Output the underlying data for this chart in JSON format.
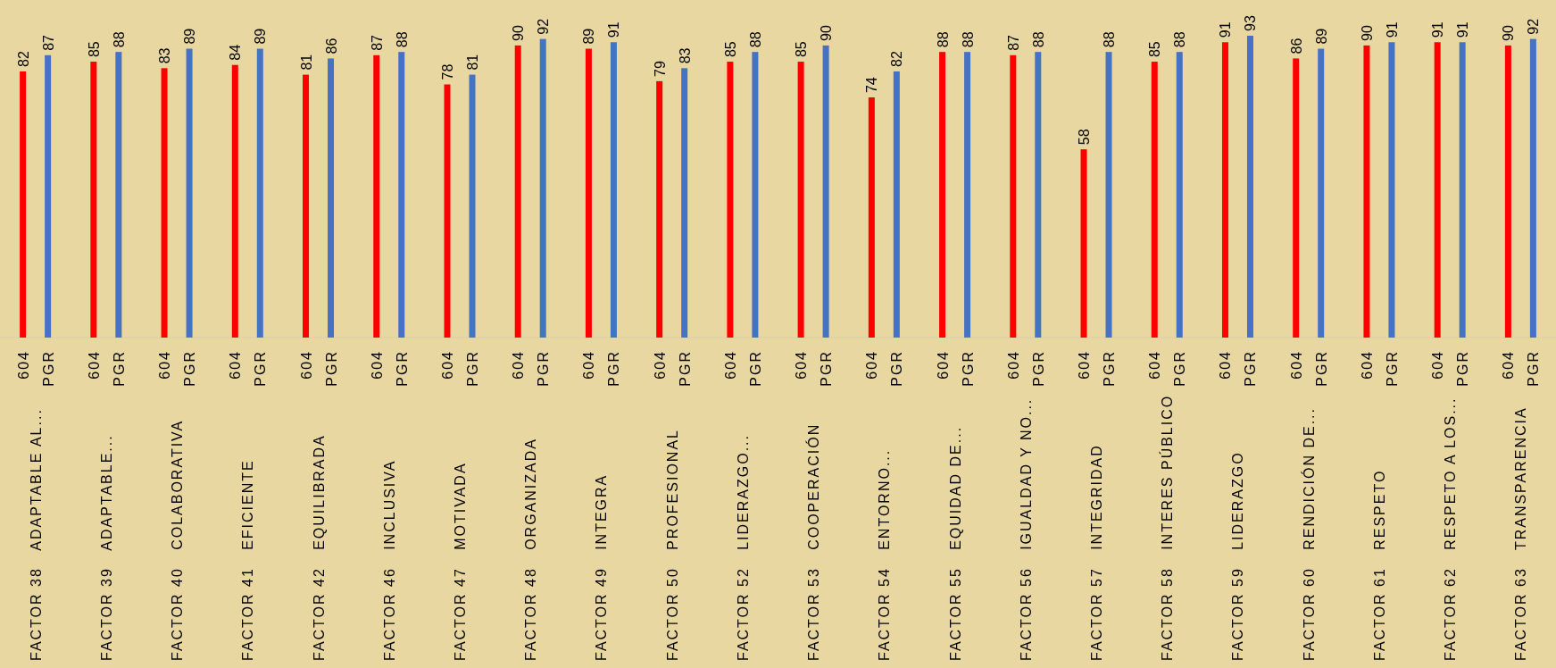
{
  "chart_data": {
    "type": "bar",
    "categories": [
      "FACTOR 38   ADAPTABLE AL...",
      "FACTOR 39   ADAPTABLE...",
      "FACTOR 40   COLABORATIVA",
      "FACTOR 41   EFICIENTE",
      "FACTOR 42   EQUILIBRADA",
      "FACTOR 46   INCLUSIVA",
      "FACTOR 47   MOTIVADA",
      "FACTOR 48   ORGANIZADA",
      "FACTOR 49   INTEGRA",
      "FACTOR 50   PROFESIONAL",
      "FACTOR 52   LIDERAZGO...",
      "FACTOR 53   COOPERACIÓN",
      "FACTOR 54   ENTORNO...",
      "FACTOR 55   EQUIDAD DE...",
      "FACTOR 56   IGUALDAD Y NO...",
      "FACTOR 57   INTEGRIDAD",
      "FACTOR 58   INTERES PÚBLICO",
      "FACTOR 59   LIDERAZGO",
      "FACTOR 60   RENDICIÓN DE...",
      "FACTOR 61   RESPETO",
      "FACTOR 62   RESPETO A LOS...",
      "FACTOR 63   TRANSPARENCIA"
    ],
    "series": [
      {
        "name": "604",
        "color": "#ff0000",
        "values": [
          82,
          85,
          83,
          84,
          81,
          87,
          78,
          90,
          89,
          79,
          85,
          85,
          74,
          88,
          87,
          58,
          85,
          91,
          86,
          90,
          91,
          90
        ]
      },
      {
        "name": "PGR",
        "color": "#4472c4",
        "values": [
          87,
          88,
          89,
          89,
          86,
          88,
          81,
          92,
          91,
          83,
          88,
          90,
          82,
          88,
          88,
          88,
          88,
          93,
          89,
          91,
          91,
          92
        ]
      }
    ],
    "data_labels": true
  }
}
